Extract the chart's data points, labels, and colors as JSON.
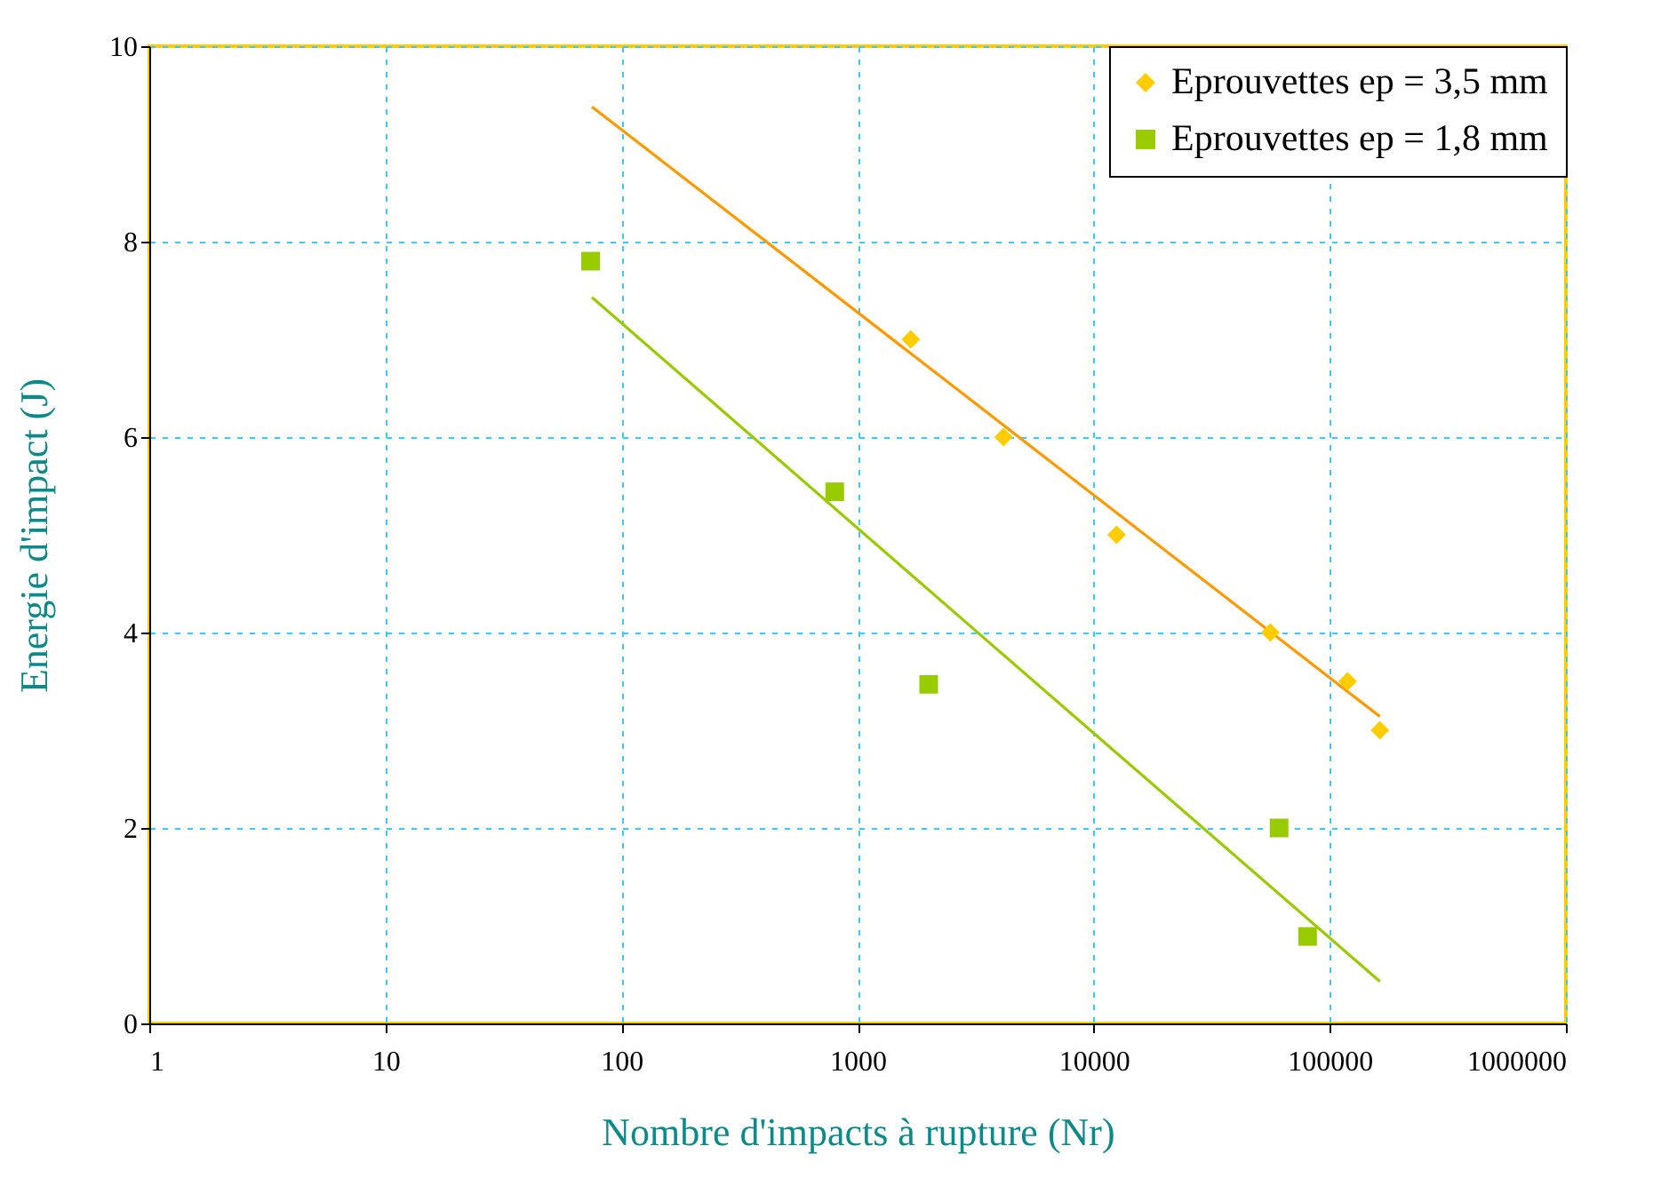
{
  "chart_data": {
    "type": "scatter",
    "xlabel": "Nombre d'impacts à  rupture (Nr)",
    "ylabel": "Energie d'impact  (J)",
    "log": "x",
    "xlim": [
      1,
      1000000
    ],
    "xticks": [
      1,
      10,
      100,
      1000,
      10000,
      100000,
      1000000
    ],
    "ylim": [
      0,
      10
    ],
    "yticks": [
      0,
      2,
      4,
      6,
      8,
      10
    ],
    "grid": true,
    "legend": "top right",
    "series": [
      {
        "name": "Eprouvettes ep = 3,5 mm",
        "color": "#ffcc00",
        "marker": "diamond",
        "x": [
          1680,
          4150,
          12500,
          56000,
          119000,
          163000
        ],
        "values": [
          7,
          6,
          5,
          4,
          3.5,
          3
        ]
      },
      {
        "name": "Eprouvettes ep = 1,8 mm",
        "color": "#99cc00",
        "marker": "square",
        "x": [
          74,
          800,
          2000,
          61000,
          80500
        ],
        "values": [
          7.8,
          5.44,
          3.47,
          2,
          0.89
        ]
      },
      {
        "type": "line",
        "color": "#ff9900",
        "line_style": "solid",
        "x": [
          75,
          3370,
          163000
        ],
        "values": [
          9.38,
          6.29,
          3.14
        ]
      },
      {
        "type": "line",
        "color": "#99cc00",
        "line_style": "solid",
        "x": [
          75,
          3370,
          163000
        ],
        "values": [
          7.43,
          3.96,
          0.43
        ]
      }
    ]
  }
}
